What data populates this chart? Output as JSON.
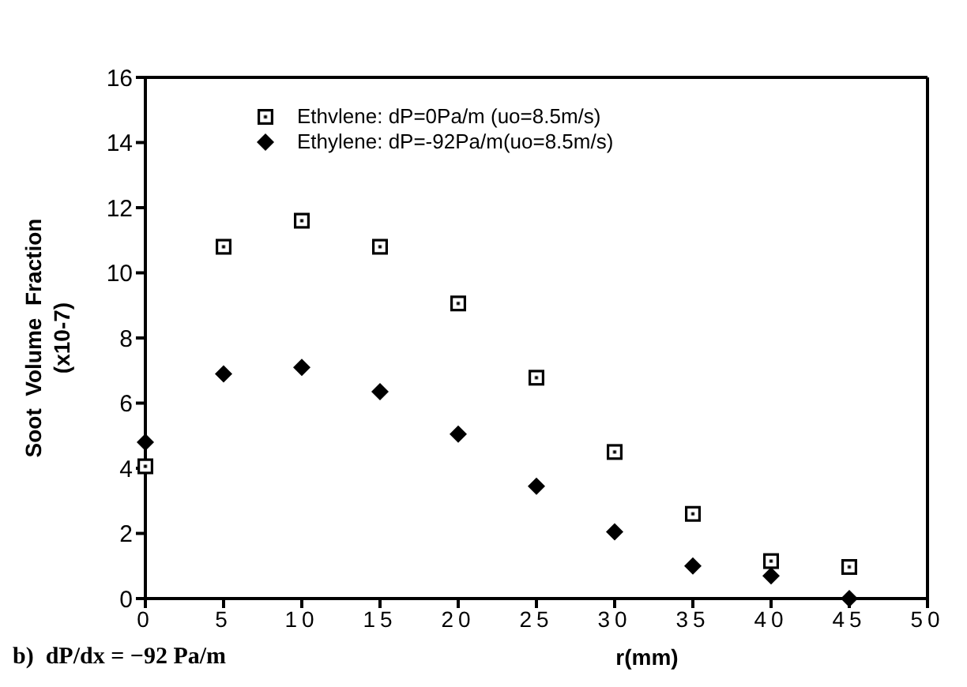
{
  "chart_data": {
    "type": "scatter",
    "xlabel": "r(mm)",
    "ylabel": "Soot  Volume  Fraction\n(x10-7)",
    "annotations": [
      "b)  dP/dx = −92 Pa/m"
    ],
    "x": [
      0,
      5,
      10,
      15,
      20,
      25,
      30,
      35,
      40,
      45
    ],
    "series": [
      {
        "name": "Ethvlene: dP=0Pa/m (uo=8.5m/s)",
        "color": "#000000",
        "marker": "square",
        "values": [
          4.06,
          10.8,
          11.6,
          10.8,
          9.06,
          6.78,
          4.5,
          2.6,
          1.15,
          0.97
        ]
      },
      {
        "name": "Ethylene: dP=-92Pa/m(uo=8.5m/s)",
        "color": "#000000",
        "marker": "diamond",
        "values": [
          4.8,
          6.9,
          7.1,
          6.35,
          5.05,
          3.45,
          2.05,
          1.0,
          0.7,
          0.0
        ]
      }
    ],
    "xlim": [
      0,
      50
    ],
    "xticks": [
      0,
      5,
      10,
      15,
      20,
      25,
      30,
      35,
      40,
      45,
      50
    ],
    "ylim": [
      0,
      16
    ],
    "yticks": [
      0,
      2,
      4,
      6,
      8,
      10,
      12,
      14,
      16
    ],
    "grid": false,
    "legend": "top"
  }
}
